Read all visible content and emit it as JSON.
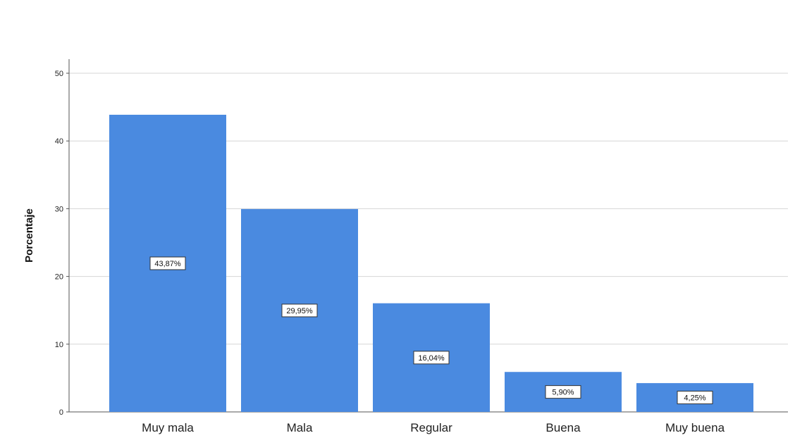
{
  "chart_data": {
    "type": "bar",
    "categories": [
      "Muy mala",
      "Mala",
      "Regular",
      "Buena",
      "Muy buena"
    ],
    "values": [
      43.87,
      29.95,
      16.04,
      5.9,
      4.25
    ],
    "data_labels": [
      "43,87%",
      "29,95%",
      "16,04%",
      "5,90%",
      "4,25%"
    ],
    "title": "",
    "xlabel": "",
    "ylabel": "Porcentaje",
    "ylim": [
      0,
      50
    ],
    "yticks": [
      0,
      10,
      20,
      30,
      40,
      50
    ],
    "grid": true,
    "bar_color": "#4a8ae0",
    "grid_color": "#d6d6d6"
  }
}
